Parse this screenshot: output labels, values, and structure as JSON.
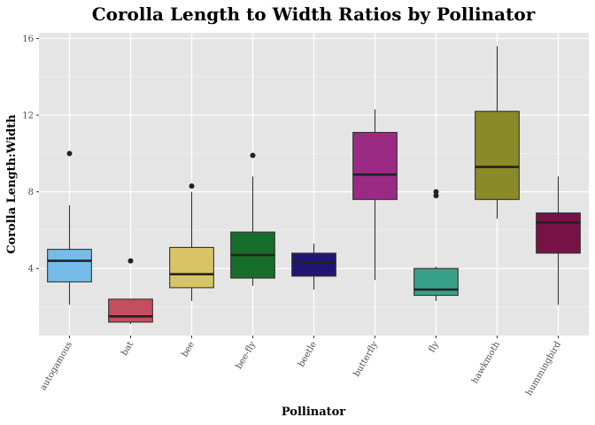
{
  "chart_data": {
    "type": "boxplot",
    "title": "Corolla Length to Width Ratios by Pollinator",
    "xlabel": "Pollinator",
    "ylabel": "Corolla Length:Width",
    "ylim": [
      0.5,
      16.3
    ],
    "yticks": [
      4,
      8,
      12,
      16
    ],
    "grid": true,
    "legend": "none",
    "categories": [
      "autogamous",
      "bat",
      "bee",
      "bee-fly",
      "beetle",
      "butterfly",
      "fly",
      "hawkmoth",
      "hummingbird"
    ],
    "boxes": [
      {
        "category": "autogamous",
        "min": 2.1,
        "q1": 3.3,
        "median": 4.4,
        "q3": 5.0,
        "max": 7.3,
        "outliers": [
          10.0
        ],
        "color": "#75BDE8"
      },
      {
        "category": "bat",
        "min": 1.1,
        "q1": 1.2,
        "median": 1.5,
        "q3": 2.4,
        "max": 2.4,
        "outliers": [
          4.4
        ],
        "color": "#C44D5E"
      },
      {
        "category": "bee",
        "min": 2.3,
        "q1": 3.0,
        "median": 3.7,
        "q3": 5.1,
        "max": 8.0,
        "outliers": [
          8.3
        ],
        "color": "#D8C466"
      },
      {
        "category": "bee-fly",
        "min": 3.1,
        "q1": 3.5,
        "median": 4.7,
        "q3": 5.9,
        "max": 8.8,
        "outliers": [
          9.9
        ],
        "color": "#166D2A"
      },
      {
        "category": "beetle",
        "min": 2.9,
        "q1": 3.6,
        "median": 4.3,
        "q3": 4.8,
        "max": 5.3,
        "outliers": [],
        "color": "#211673"
      },
      {
        "category": "butterfly",
        "min": 3.4,
        "q1": 7.6,
        "median": 8.9,
        "q3": 11.1,
        "max": 12.3,
        "outliers": [],
        "color": "#9B2A84"
      },
      {
        "category": "fly",
        "min": 2.3,
        "q1": 2.6,
        "median": 2.9,
        "q3": 4.0,
        "max": 4.1,
        "outliers": [
          7.8,
          8.0
        ],
        "color": "#37A187"
      },
      {
        "category": "hawkmoth",
        "min": 6.6,
        "q1": 7.6,
        "median": 9.3,
        "q3": 12.2,
        "max": 15.6,
        "outliers": [],
        "color": "#8A8A28"
      },
      {
        "category": "hummingbird",
        "min": 2.1,
        "q1": 4.8,
        "median": 6.4,
        "q3": 6.9,
        "max": 8.8,
        "outliers": [],
        "color": "#761246"
      }
    ]
  }
}
